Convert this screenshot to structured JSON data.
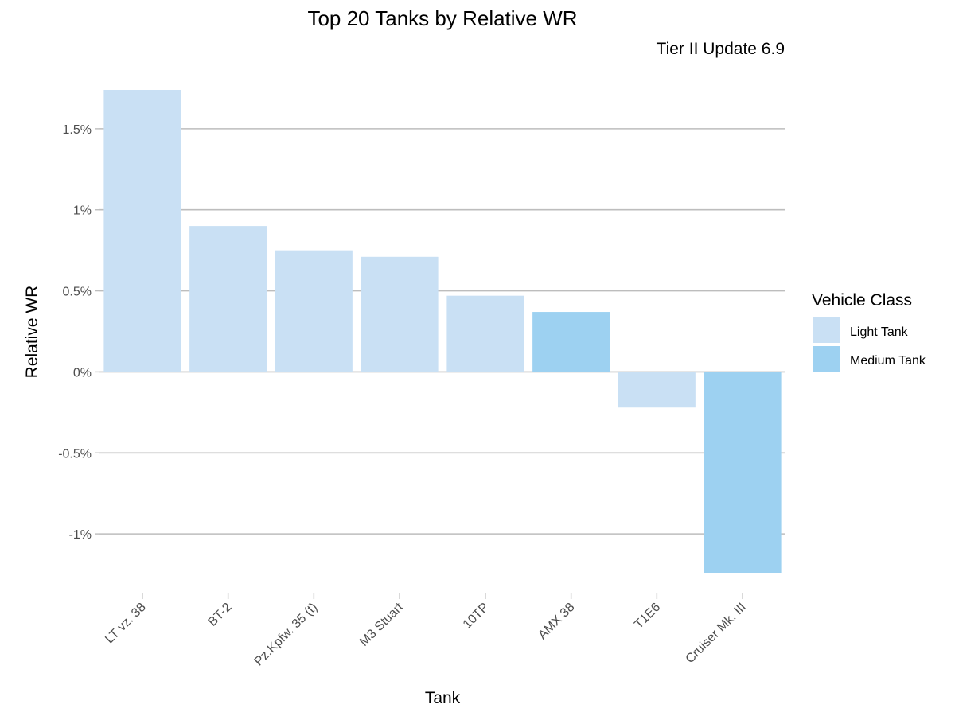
{
  "chart_data": {
    "type": "bar",
    "title": "Top 20 Tanks by Relative WR",
    "subtitle": "Tier II Update 6.9",
    "xlabel": "Tank",
    "ylabel": "Relative WR",
    "categories": [
      "LT vz. 38",
      "BT-2",
      "Pz.Kpfw. 35 (t)",
      "M3 Stuart",
      "10TP",
      "AMX 38",
      "T1E6",
      "Cruiser Mk. III"
    ],
    "values": [
      1.74,
      0.9,
      0.75,
      0.71,
      0.47,
      0.37,
      -0.22,
      -1.24
    ],
    "classes": [
      "Light Tank",
      "Light Tank",
      "Light Tank",
      "Light Tank",
      "Light Tank",
      "Medium Tank",
      "Light Tank",
      "Medium Tank"
    ],
    "ylim": [
      -1.24,
      1.74
    ],
    "yticks": [
      1.5,
      1.0,
      0.5,
      0.0,
      -0.5,
      -1.0
    ],
    "ytick_labels": [
      "1.5%",
      "1%",
      "0.5%",
      "0%",
      "-0.5%",
      "-1%"
    ],
    "grid": true,
    "legend": {
      "title": "Vehicle Class",
      "position": "right",
      "entries": [
        {
          "label": "Light Tank",
          "color": "#c9e0f4"
        },
        {
          "label": "Medium Tank",
          "color": "#9dd1f1"
        }
      ]
    }
  }
}
